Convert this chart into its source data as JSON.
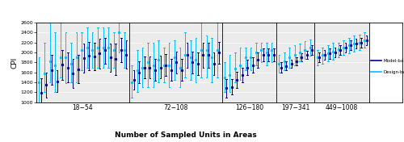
{
  "title": "",
  "xlabel": "Number of Sampled Units in Areas",
  "ylabel": "CPI",
  "ylim": [
    1000,
    2600
  ],
  "yticks": [
    1000,
    1200,
    1400,
    1600,
    1800,
    2000,
    2200,
    2400,
    2600
  ],
  "panels": [
    "18−54",
    "72−108",
    "126−180",
    "197−341",
    "449−1008"
  ],
  "model_color": "#00008B",
  "design_color": "#00BFFF",
  "panel_data": {
    "18-54": {
      "model": {
        "centers": [
          1190,
          1350,
          1650,
          1420,
          1760,
          1700,
          1580,
          1660,
          1890,
          1940,
          1920,
          1980,
          2050,
          1900,
          1870,
          2050,
          1960
        ],
        "lower": [
          900,
          1100,
          1350,
          1200,
          1450,
          1400,
          1280,
          1380,
          1600,
          1650,
          1650,
          1680,
          1780,
          1620,
          1550,
          1800,
          1680
        ],
        "upper": [
          1480,
          1600,
          1950,
          1640,
          2050,
          2000,
          1870,
          1950,
          2180,
          2220,
          2190,
          2270,
          2300,
          2180,
          2180,
          2300,
          2240
        ]
      },
      "design": {
        "centers": [
          1400,
          1580,
          1820,
          1750,
          1900,
          1900,
          1780,
          1900,
          2050,
          2100,
          2050,
          2100,
          2100,
          2100,
          2050,
          2400,
          2050
        ],
        "lower": [
          1000,
          1200,
          1400,
          1200,
          1500,
          1380,
          1400,
          1400,
          1650,
          1700,
          1700,
          1700,
          1700,
          1700,
          1700,
          2000,
          1700
        ],
        "upper": [
          1900,
          2200,
          2600,
          2400,
          2600,
          2400,
          2200,
          2400,
          2400,
          2500,
          2400,
          2500,
          2500,
          2500,
          2400,
          2600,
          2400
        ]
      }
    },
    "72-108": {
      "model": {
        "centers": [
          1450,
          1600,
          1700,
          1700,
          1650,
          1700,
          1750,
          1650,
          1800,
          1650,
          1950,
          1800,
          1780,
          1950,
          1950,
          1780,
          2000
        ],
        "lower": [
          1250,
          1380,
          1480,
          1480,
          1430,
          1480,
          1530,
          1430,
          1580,
          1430,
          1700,
          1580,
          1550,
          1700,
          1700,
          1550,
          1780
        ],
        "upper": [
          1650,
          1820,
          1920,
          1920,
          1880,
          1930,
          1970,
          1880,
          2020,
          1880,
          2200,
          2020,
          2010,
          2200,
          2200,
          2010,
          2220
        ]
      },
      "design": {
        "centers": [
          1400,
          1650,
          1700,
          1800,
          1750,
          1850,
          1750,
          1750,
          1900,
          1700,
          1950,
          1900,
          1850,
          2050,
          2050,
          1900,
          2050
        ],
        "lower": [
          1100,
          1200,
          1300,
          1300,
          1300,
          1400,
          1400,
          1300,
          1450,
          1300,
          1500,
          1450,
          1400,
          1500,
          1500,
          1400,
          1500
        ],
        "upper": [
          1750,
          2050,
          2100,
          2200,
          2200,
          2250,
          2100,
          2200,
          2250,
          2100,
          2400,
          2250,
          2300,
          2600,
          2350,
          2300,
          2600
        ]
      }
    },
    "126-180": {
      "model": {
        "centers": [
          1280,
          1300,
          1450,
          1550,
          1700,
          1750,
          1850,
          1950,
          1950,
          1950
        ],
        "lower": [
          1100,
          1150,
          1280,
          1400,
          1550,
          1600,
          1700,
          1820,
          1820,
          1820
        ],
        "upper": [
          1460,
          1460,
          1620,
          1700,
          1850,
          1900,
          2000,
          2080,
          2080,
          2080
        ]
      },
      "design": {
        "centers": [
          1500,
          1550,
          1680,
          1750,
          1900,
          1900,
          2000,
          2050,
          2000,
          2050
        ],
        "lower": [
          1200,
          1200,
          1400,
          1450,
          1650,
          1650,
          1750,
          1800,
          1750,
          1800
        ],
        "upper": [
          1800,
          1950,
          2000,
          2100,
          2100,
          2100,
          2200,
          2200,
          2200,
          2200
        ]
      }
    },
    "197-341": {
      "model": {
        "centers": [
          1700,
          1730,
          1780,
          1830,
          1900,
          1960,
          2050
        ],
        "lower": [
          1600,
          1640,
          1700,
          1750,
          1820,
          1880,
          1950
        ],
        "upper": [
          1800,
          1820,
          1860,
          1910,
          1980,
          2040,
          2150
        ]
      },
      "design": {
        "centers": [
          1780,
          1830,
          1900,
          1950,
          2000,
          2050,
          2100
        ],
        "lower": [
          1600,
          1650,
          1700,
          1750,
          1820,
          1870,
          1940
        ],
        "upper": [
          1960,
          2010,
          2100,
          2150,
          2180,
          2230,
          2260
        ]
      }
    },
    "449-1008": {
      "model": {
        "centers": [
          1900,
          1950,
          1980,
          2000,
          2050,
          2100,
          2150,
          2180,
          2200,
          2250
        ],
        "lower": [
          1800,
          1850,
          1880,
          1900,
          1950,
          2000,
          2050,
          2080,
          2100,
          2150
        ],
        "upper": [
          2000,
          2050,
          2080,
          2100,
          2150,
          2200,
          2250,
          2280,
          2300,
          2350
        ]
      },
      "design": {
        "centers": [
          1900,
          1950,
          1980,
          2020,
          2060,
          2100,
          2140,
          2180,
          2200,
          2250
        ],
        "lower": [
          1750,
          1780,
          1820,
          1850,
          1900,
          1950,
          1980,
          2020,
          2050,
          2100
        ],
        "upper": [
          2050,
          2100,
          2150,
          2200,
          2200,
          2250,
          2300,
          2340,
          2360,
          2400
        ]
      }
    }
  }
}
